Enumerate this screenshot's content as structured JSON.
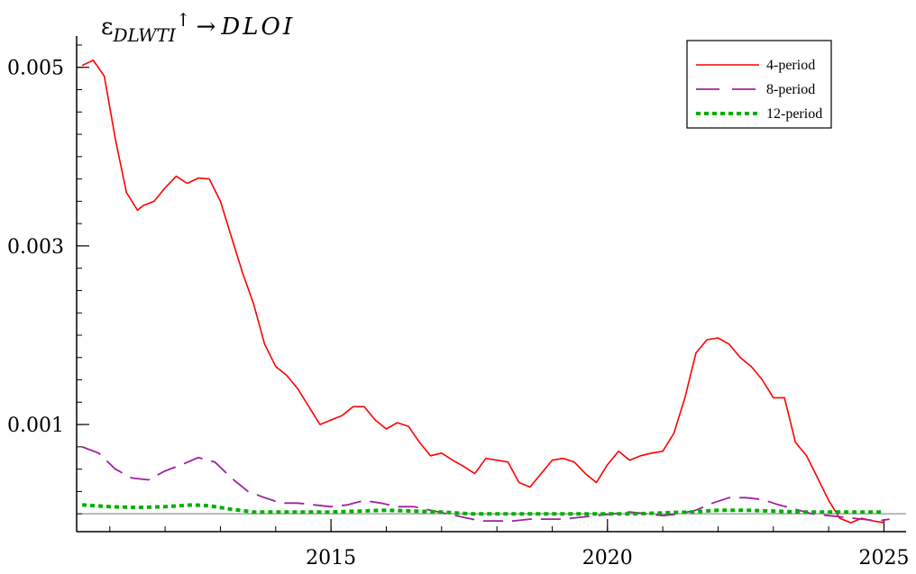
{
  "chart_data": {
    "type": "line",
    "title": {
      "epsilon": "ε",
      "subscript": "DLWTI",
      "arrow_up": "↑",
      "arrow_right": "→",
      "target": "DLOI"
    },
    "xlabel": "",
    "ylabel": "",
    "xlim": [
      2010.4,
      2025.4
    ],
    "ylim": [
      -0.0002,
      0.0053
    ],
    "x_ticks": [
      2015,
      2020,
      2025
    ],
    "x_tick_labels": [
      "2015",
      "2020",
      "2025"
    ],
    "y_ticks": [
      0.001,
      0.003,
      0.005
    ],
    "y_tick_labels": [
      "0.001",
      "0.003",
      "0.005"
    ],
    "legend_position": "top-right",
    "grid": false,
    "series": [
      {
        "name": "4-period",
        "color": "#ff0000",
        "style": "solid",
        "x": [
          2010.5,
          2010.7,
          2010.9,
          2011.1,
          2011.3,
          2011.5,
          2011.6,
          2011.8,
          2012.0,
          2012.2,
          2012.4,
          2012.6,
          2012.8,
          2013.0,
          2013.2,
          2013.4,
          2013.6,
          2013.8,
          2014.0,
          2014.2,
          2014.4,
          2014.6,
          2014.8,
          2015.0,
          2015.2,
          2015.4,
          2015.6,
          2015.8,
          2016.0,
          2016.2,
          2016.4,
          2016.6,
          2016.8,
          2017.0,
          2017.2,
          2017.4,
          2017.6,
          2017.8,
          2018.0,
          2018.2,
          2018.4,
          2018.6,
          2018.8,
          2019.0,
          2019.2,
          2019.4,
          2019.6,
          2019.8,
          2020.0,
          2020.2,
          2020.4,
          2020.6,
          2020.8,
          2021.0,
          2021.2,
          2021.4,
          2021.6,
          2021.8,
          2022.0,
          2022.2,
          2022.4,
          2022.6,
          2022.8,
          2023.0,
          2023.2,
          2023.4,
          2023.6,
          2023.8,
          2024.0,
          2024.2,
          2024.4,
          2024.6,
          2024.8,
          2025.0
        ],
        "y": [
          0.00502,
          0.00508,
          0.0049,
          0.0042,
          0.0036,
          0.0034,
          0.00345,
          0.0035,
          0.00365,
          0.00378,
          0.0037,
          0.00376,
          0.00375,
          0.0035,
          0.0031,
          0.0027,
          0.00235,
          0.0019,
          0.00165,
          0.00155,
          0.0014,
          0.0012,
          0.001,
          0.00105,
          0.0011,
          0.0012,
          0.0012,
          0.00105,
          0.00095,
          0.00102,
          0.00098,
          0.0008,
          0.00065,
          0.00068,
          0.0006,
          0.00053,
          0.00045,
          0.00062,
          0.0006,
          0.00058,
          0.00035,
          0.0003,
          0.00045,
          0.0006,
          0.00062,
          0.00058,
          0.00045,
          0.00035,
          0.00055,
          0.0007,
          0.0006,
          0.00065,
          0.00068,
          0.0007,
          0.0009,
          0.0013,
          0.0018,
          0.00195,
          0.00197,
          0.0019,
          0.00175,
          0.00165,
          0.0015,
          0.0013,
          0.0013,
          0.0008,
          0.00065,
          0.0004,
          0.00015,
          -5e-05,
          -0.0001,
          -5e-05,
          -8e-05,
          -0.0001
        ]
      },
      {
        "name": "8-period",
        "color": "#a020a0",
        "style": "dashed",
        "x": [
          2010.5,
          2010.8,
          2011.1,
          2011.4,
          2011.7,
          2012.0,
          2012.3,
          2012.6,
          2012.9,
          2013.2,
          2013.5,
          2013.8,
          2014.1,
          2014.4,
          2014.7,
          2015.0,
          2015.3,
          2015.6,
          2015.9,
          2016.2,
          2016.5,
          2016.8,
          2017.1,
          2017.4,
          2017.7,
          2018.0,
          2018.3,
          2018.6,
          2018.9,
          2019.2,
          2019.5,
          2019.8,
          2020.1,
          2020.4,
          2020.7,
          2021.0,
          2021.3,
          2021.6,
          2021.9,
          2022.2,
          2022.5,
          2022.8,
          2023.1,
          2023.4,
          2023.7,
          2024.0,
          2024.3,
          2024.6,
          2024.9,
          2025.1
        ],
        "y": [
          0.00075,
          0.00068,
          0.0005,
          0.0004,
          0.00038,
          0.00048,
          0.00055,
          0.00063,
          0.00058,
          0.0004,
          0.00025,
          0.00018,
          0.00012,
          0.00012,
          0.0001,
          8e-05,
          0.0001,
          0.00015,
          0.00012,
          8e-05,
          8e-05,
          4e-05,
          0.0,
          -4e-05,
          -8e-05,
          -8e-05,
          -8e-05,
          -6e-05,
          -6e-05,
          -6e-05,
          -4e-05,
          -2e-05,
          0.0,
          2e-05,
          0.0,
          -2e-05,
          0.0,
          4e-05,
          0.00012,
          0.00018,
          0.00018,
          0.00016,
          0.0001,
          5e-05,
          0.0,
          -2e-05,
          -4e-05,
          -6e-05,
          -8e-05,
          -6e-05
        ]
      },
      {
        "name": "12-period",
        "color": "#00b000",
        "style": "dotted",
        "x": [
          2010.5,
          2011.0,
          2011.5,
          2012.0,
          2012.5,
          2012.8,
          2013.2,
          2013.6,
          2014.0,
          2014.5,
          2015.0,
          2015.5,
          2016.0,
          2016.5,
          2017.0,
          2017.5,
          2018.0,
          2018.5,
          2019.0,
          2019.5,
          2020.0,
          2020.5,
          2021.0,
          2021.5,
          2022.0,
          2022.5,
          2023.0,
          2023.5,
          2024.0,
          2024.5,
          2025.0
        ],
        "y": [
          0.0001,
          8e-05,
          7e-05,
          8e-05,
          0.0001,
          9e-05,
          5e-05,
          2e-05,
          2e-05,
          2e-05,
          2e-05,
          3e-05,
          4e-05,
          3e-05,
          2e-05,
          0.0,
          0.0,
          0.0,
          0.0,
          0.0,
          0.0,
          0.0,
          1e-05,
          2e-05,
          4e-05,
          4e-05,
          3e-05,
          2e-05,
          2e-05,
          2e-05,
          2e-05
        ]
      }
    ]
  }
}
